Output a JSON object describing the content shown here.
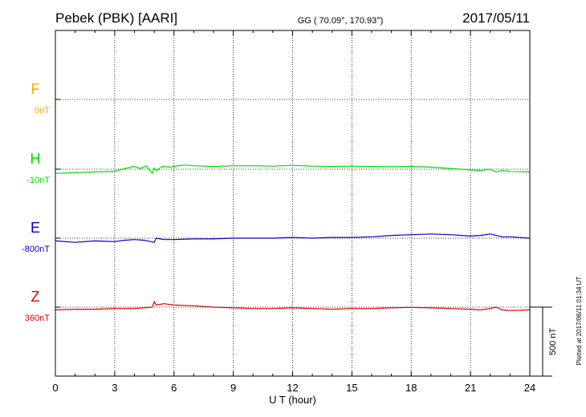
{
  "header": {
    "station": "Pebek (PBK)  [AARI]",
    "coords": "GG ( 70.09°, 170.93°)",
    "date": "2017/05/11"
  },
  "footer": {
    "plotted": "Plotted at 2017/06/11 01:34 UT"
  },
  "chart_data": {
    "type": "line",
    "xlabel": "U T (hour)",
    "xlim": [
      0,
      24
    ],
    "x_ticks": [
      0,
      3,
      6,
      9,
      12,
      15,
      18,
      21,
      24
    ],
    "scale_bar": "500 nT",
    "series": [
      {
        "name": "F",
        "baseline": "0nT",
        "color": "#ffa500",
        "x": [],
        "y": []
      },
      {
        "name": "H",
        "baseline": "-10nT",
        "color": "#00dd00",
        "x": [
          0,
          1,
          2,
          3,
          3.4,
          3.8,
          4.0,
          4.3,
          4.6,
          4.9,
          5.0,
          5.1,
          5.4,
          5.8,
          6.2,
          6.6,
          7,
          8,
          9,
          10,
          11,
          12,
          13,
          14,
          15,
          16,
          17,
          18,
          19,
          20,
          21,
          21.5,
          22,
          22.3,
          22.6,
          23,
          24
        ],
        "y": [
          -40,
          -35,
          -30,
          -25,
          -10,
          5,
          10,
          -5,
          15,
          -40,
          0,
          -20,
          10,
          5,
          15,
          20,
          15,
          10,
          15,
          15,
          12,
          18,
          12,
          10,
          12,
          10,
          8,
          10,
          5,
          -5,
          -15,
          -20,
          -10,
          -30,
          -20,
          -25,
          -30
        ]
      },
      {
        "name": "E",
        "baseline": "-800nT",
        "color": "#0000cc",
        "x": [
          0,
          1,
          2,
          3,
          3.5,
          4,
          4.5,
          5,
          5.1,
          5.5,
          6,
          7,
          8,
          9,
          10,
          11,
          12,
          13,
          14,
          15,
          16,
          17,
          18,
          19,
          20,
          21,
          21.5,
          22,
          22.3,
          22.6,
          23,
          24
        ],
        "y": [
          -820,
          -830,
          -820,
          -825,
          -815,
          -810,
          -815,
          -830,
          -800,
          -810,
          -810,
          -805,
          -805,
          -800,
          -800,
          -800,
          -795,
          -800,
          -795,
          -795,
          -790,
          -780,
          -775,
          -770,
          -775,
          -785,
          -780,
          -770,
          -780,
          -790,
          -790,
          -800
        ]
      },
      {
        "name": "Z",
        "baseline": "360nT",
        "color": "#dd0000",
        "x": [
          0,
          1,
          2,
          3,
          4,
          4.9,
          5.0,
          5.1,
          5.5,
          6,
          7,
          8,
          9,
          10,
          11,
          12,
          13,
          14,
          15,
          16,
          17,
          18,
          19,
          20,
          21,
          21.5,
          22,
          22.3,
          22.6,
          23,
          24
        ],
        "y": [
          340,
          345,
          345,
          350,
          350,
          360,
          400,
          375,
          385,
          375,
          370,
          360,
          355,
          350,
          350,
          355,
          350,
          345,
          350,
          350,
          355,
          358,
          355,
          350,
          345,
          340,
          350,
          360,
          340,
          335,
          340
        ]
      }
    ]
  }
}
